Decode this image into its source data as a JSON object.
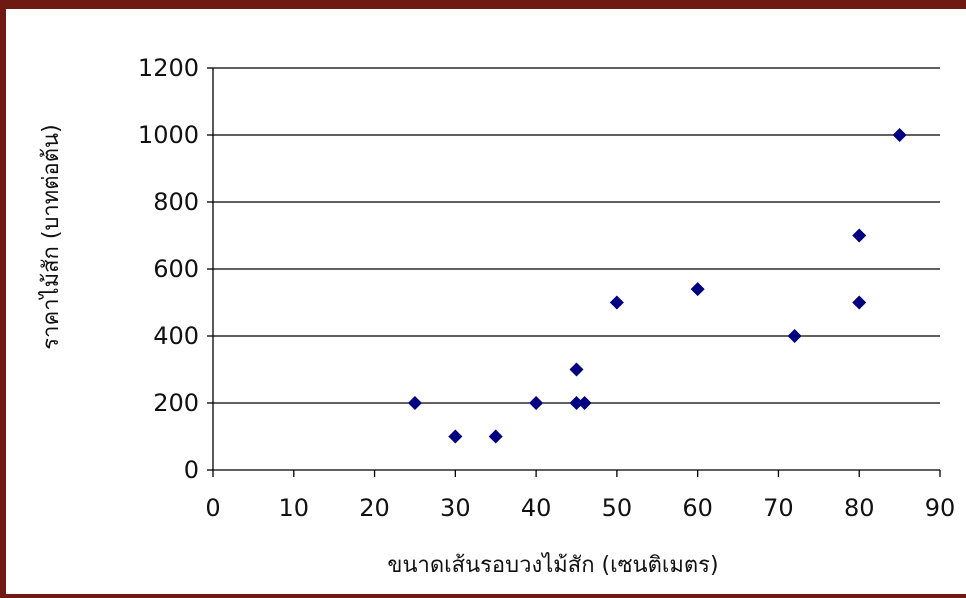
{
  "chart_data": {
    "type": "scatter",
    "title": "",
    "xlabel": "ขนาดเส้นรอบวงไม้สัก (เซนติเมตร)",
    "ylabel": "ราคาไม้สัก (บาทต่อต้น)",
    "xlim": [
      0,
      90
    ],
    "ylim": [
      0,
      1200
    ],
    "xticks": [
      "0",
      "10",
      "20",
      "30",
      "40",
      "50",
      "60",
      "70",
      "80",
      "90"
    ],
    "yticks": [
      "0",
      "200",
      "400",
      "600",
      "800",
      "1000",
      "1200"
    ],
    "grid": "horizontal",
    "marker": "diamond",
    "marker_color": "#000080",
    "frame_color": "#6e1a12",
    "points": [
      {
        "x": 25,
        "y": 200
      },
      {
        "x": 30,
        "y": 100
      },
      {
        "x": 35,
        "y": 100
      },
      {
        "x": 40,
        "y": 200
      },
      {
        "x": 45,
        "y": 300
      },
      {
        "x": 45,
        "y": 200
      },
      {
        "x": 46,
        "y": 200
      },
      {
        "x": 50,
        "y": 500
      },
      {
        "x": 60,
        "y": 540
      },
      {
        "x": 72,
        "y": 400
      },
      {
        "x": 80,
        "y": 700
      },
      {
        "x": 80,
        "y": 500
      },
      {
        "x": 85,
        "y": 1000
      }
    ]
  }
}
